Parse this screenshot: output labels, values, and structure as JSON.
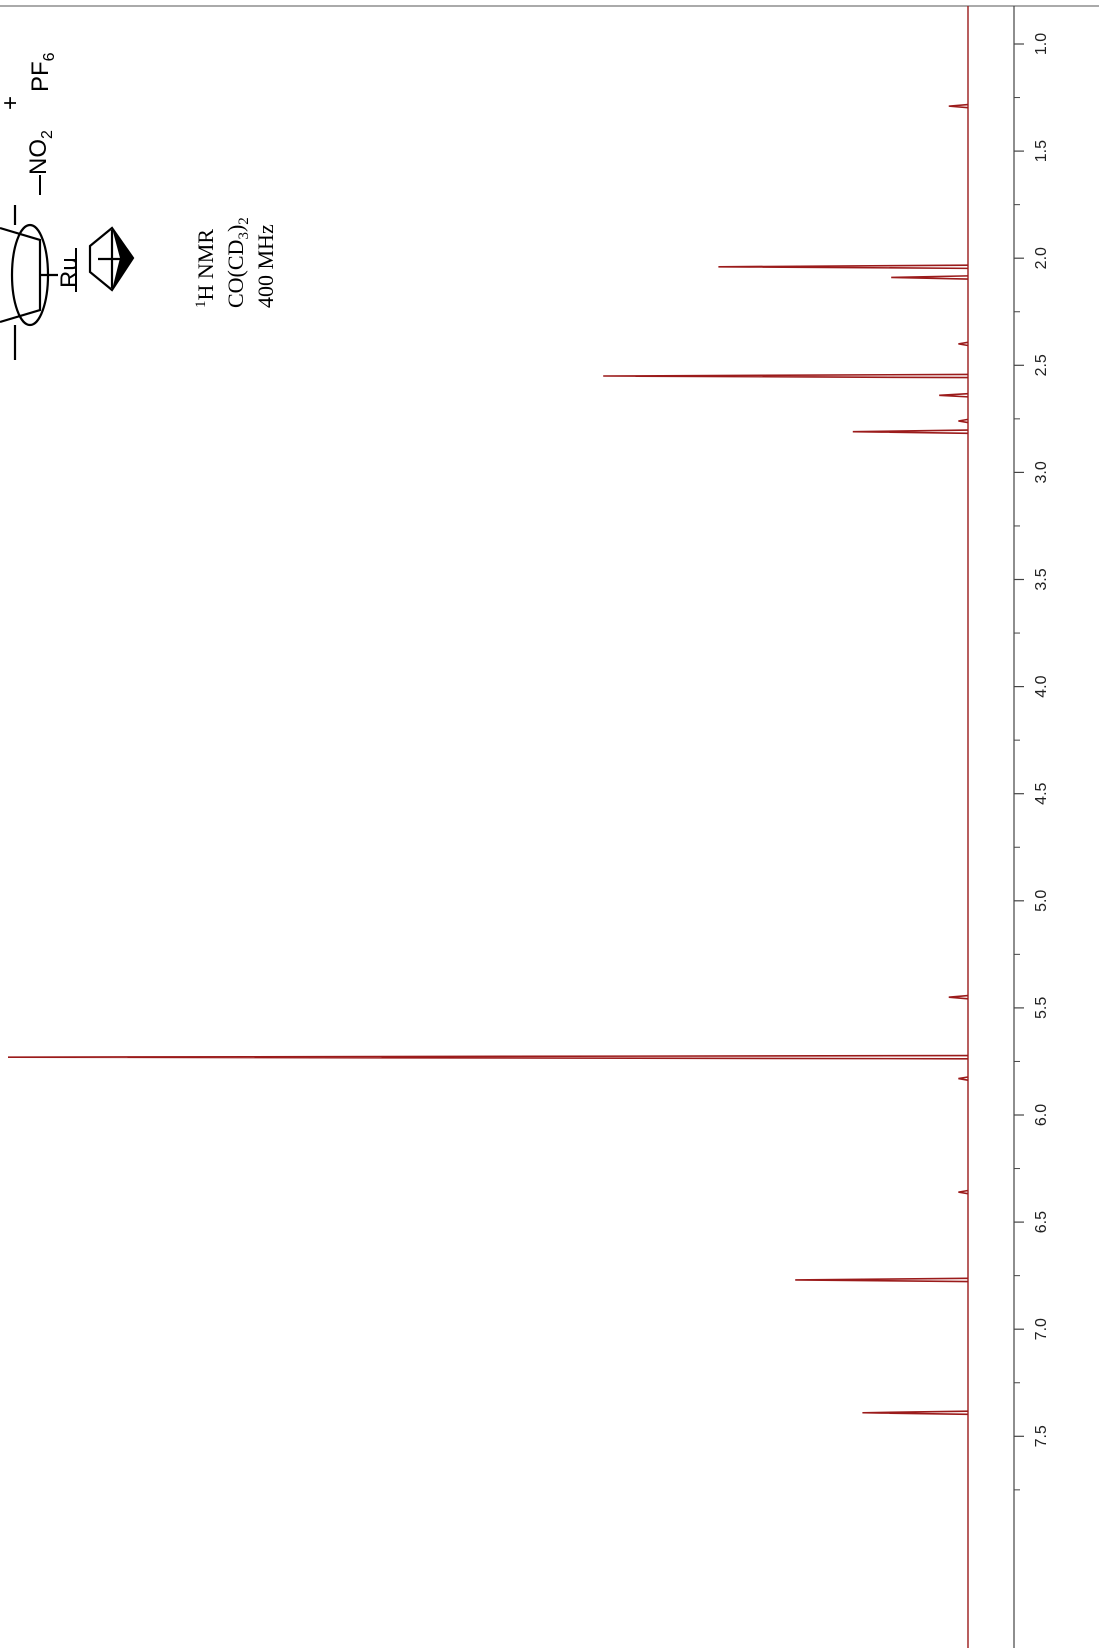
{
  "chart_data": {
    "type": "line",
    "orientation": "rotated-90",
    "x_axis": {
      "label": "",
      "ticks": [
        "1.0",
        "1.5",
        "2.0",
        "2.5",
        "3.0",
        "3.5",
        "4.0",
        "4.5",
        "5.0",
        "5.5",
        "6.0",
        "6.5",
        "7.0",
        "7.5"
      ],
      "tick_values": [
        1.0,
        1.5,
        2.0,
        2.5,
        3.0,
        3.5,
        4.0,
        4.5,
        5.0,
        5.5,
        6.0,
        6.5,
        7.0,
        7.5
      ],
      "range": [
        0.85,
        7.95
      ],
      "reversed": false
    },
    "y_axis": {
      "label": "",
      "range": [
        0,
        100
      ]
    },
    "grid": false,
    "series_color": "#9b1b1b",
    "peaks": [
      {
        "ppm": 1.29,
        "intensity": 2
      },
      {
        "ppm": 2.04,
        "intensity": 26
      },
      {
        "ppm": 2.09,
        "intensity": 8
      },
      {
        "ppm": 2.4,
        "intensity": 1
      },
      {
        "ppm": 2.55,
        "intensity": 38
      },
      {
        "ppm": 2.64,
        "intensity": 3
      },
      {
        "ppm": 2.76,
        "intensity": 1
      },
      {
        "ppm": 2.81,
        "intensity": 12
      },
      {
        "ppm": 5.45,
        "intensity": 2
      },
      {
        "ppm": 5.73,
        "intensity": 100
      },
      {
        "ppm": 5.83,
        "intensity": 1
      },
      {
        "ppm": 6.36,
        "intensity": 1
      },
      {
        "ppm": 6.77,
        "intensity": 18
      },
      {
        "ppm": 7.39,
        "intensity": 11
      }
    ],
    "annotation": {
      "line1_sup": "1",
      "line1": "H NMR",
      "line2_pre": "CO(CD",
      "line2_sub1": "3",
      "line2_mid": ")",
      "line2_sub2": "2",
      "line3": "400 MHz"
    }
  },
  "structure": {
    "ru_label": "Ru",
    "no2_label": "NO",
    "no2_sub": "2",
    "charge": "+",
    "counterion": "PF",
    "counterion_sub": "6"
  }
}
